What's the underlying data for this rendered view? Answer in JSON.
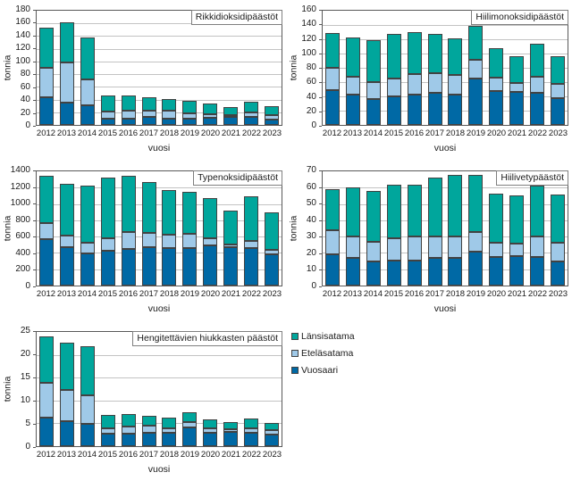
{
  "axis": {
    "ylabel": "tonnia",
    "xlabel": "vuosi"
  },
  "legend": {
    "items": [
      {
        "label": "Länsisatama",
        "color": "#00A69C"
      },
      {
        "label": "Eteläsatama",
        "color": "#9FC9E8"
      },
      {
        "label": "Vuosaari",
        "color": "#0069A5"
      }
    ]
  },
  "colors": {
    "lansisatama": "#00A69C",
    "etelasatama": "#9FC9E8",
    "vuosaari": "#0069A5",
    "bar_outline": "#424242",
    "gridline": "#C3C3C3",
    "plot_border": "#595959"
  },
  "chart_data": [
    {
      "type": "bar",
      "stacked": true,
      "title": "Rikkidioksidipäästöt",
      "ylabel": "tonnia",
      "xlabel": "vuosi",
      "ylim": [
        0,
        180
      ],
      "yticks": [
        0,
        20,
        40,
        60,
        80,
        100,
        120,
        140,
        160,
        180
      ],
      "categories": [
        "2012",
        "2013",
        "2014",
        "2015",
        "2016",
        "2017",
        "2018",
        "2019",
        "2020",
        "2021",
        "2022",
        "2023"
      ],
      "series": [
        {
          "name": "Vuosaari",
          "color": "#0069A5",
          "values": [
            44,
            35,
            31,
            10,
            10,
            12,
            10,
            10,
            11,
            12,
            12,
            9
          ]
        },
        {
          "name": "Eteläsatama",
          "color": "#9FC9E8",
          "values": [
            46,
            64,
            41,
            11,
            12,
            11,
            13,
            8,
            6,
            4,
            8,
            6
          ]
        },
        {
          "name": "Länsisatama",
          "color": "#00A69C",
          "values": [
            64,
            63,
            66,
            25,
            25,
            20,
            18,
            20,
            17,
            12,
            17,
            14
          ]
        }
      ]
    },
    {
      "type": "bar",
      "stacked": true,
      "title": "Hiilimonoksidipäästöt",
      "ylabel": "tonnia",
      "xlabel": "vuosi",
      "ylim": [
        0,
        160
      ],
      "yticks": [
        0,
        20,
        40,
        60,
        80,
        100,
        120,
        140,
        160
      ],
      "categories": [
        "2012",
        "2013",
        "2014",
        "2015",
        "2016",
        "2017",
        "2018",
        "2019",
        "2020",
        "2021",
        "2022",
        "2023"
      ],
      "series": [
        {
          "name": "Vuosaari",
          "color": "#0069A5",
          "values": [
            49,
            43,
            36,
            40,
            42,
            45,
            43,
            65,
            47,
            46,
            45,
            38
          ]
        },
        {
          "name": "Eteläsatama",
          "color": "#9FC9E8",
          "values": [
            31,
            25,
            24,
            25,
            29,
            28,
            27,
            26,
            19,
            13,
            22,
            19
          ]
        },
        {
          "name": "Länsisatama",
          "color": "#00A69C",
          "values": [
            49,
            54,
            59,
            62,
            59,
            54,
            51,
            48,
            42,
            37,
            47,
            39
          ]
        }
      ]
    },
    {
      "type": "bar",
      "stacked": true,
      "title": "Typenoksidipäästöt",
      "ylabel": "tonnia",
      "xlabel": "vuosi",
      "ylim": [
        0,
        1400
      ],
      "yticks": [
        0,
        200,
        400,
        600,
        800,
        1000,
        1200,
        1400
      ],
      "categories": [
        "2012",
        "2013",
        "2014",
        "2015",
        "2016",
        "2017",
        "2018",
        "2019",
        "2020",
        "2021",
        "2022",
        "2023"
      ],
      "series": [
        {
          "name": "Vuosaari",
          "color": "#0069A5",
          "values": [
            565,
            475,
            390,
            430,
            445,
            475,
            455,
            465,
            490,
            475,
            455,
            380
          ]
        },
        {
          "name": "Eteläsatama",
          "color": "#9FC9E8",
          "values": [
            205,
            135,
            130,
            155,
            210,
            175,
            165,
            165,
            95,
            30,
            95,
            60
          ]
        },
        {
          "name": "Länsisatama",
          "color": "#00A69C",
          "values": [
            575,
            635,
            705,
            740,
            695,
            615,
            550,
            520,
            485,
            415,
            545,
            455
          ]
        }
      ]
    },
    {
      "type": "bar",
      "stacked": true,
      "title": "Hiilivetypäästöt",
      "ylabel": "tonnia",
      "xlabel": "vuosi",
      "ylim": [
        0,
        70
      ],
      "yticks": [
        0,
        10,
        20,
        30,
        40,
        50,
        60,
        70
      ],
      "categories": [
        "2012",
        "2013",
        "2014",
        "2015",
        "2016",
        "2017",
        "2018",
        "2019",
        "2020",
        "2021",
        "2022",
        "2023"
      ],
      "series": [
        {
          "name": "Vuosaari",
          "color": "#0069A5",
          "values": [
            19,
            17,
            15,
            15.5,
            15.5,
            17,
            17,
            21,
            17.5,
            18,
            17.5,
            15
          ]
        },
        {
          "name": "Eteläsatama",
          "color": "#9FC9E8",
          "values": [
            15,
            13,
            12,
            13.5,
            14.5,
            13,
            13,
            12,
            8.5,
            7.5,
            12.5,
            11
          ]
        },
        {
          "name": "Länsisatama",
          "color": "#00A69C",
          "values": [
            25,
            30,
            31,
            33,
            32,
            36,
            38,
            35,
            30.5,
            29.5,
            31.5,
            30
          ]
        }
      ]
    },
    {
      "type": "bar",
      "stacked": true,
      "title": "Hengitettävien hiukkasten päästöt",
      "ylabel": "tonnia",
      "xlabel": "vuosi",
      "ylim": [
        0,
        25
      ],
      "yticks": [
        0,
        5,
        10,
        15,
        20,
        25
      ],
      "categories": [
        "2012",
        "2013",
        "2014",
        "2015",
        "2016",
        "2017",
        "2018",
        "2019",
        "2020",
        "2021",
        "2022",
        "2023"
      ],
      "series": [
        {
          "name": "Vuosaari",
          "color": "#0069A5",
          "values": [
            6.2,
            5.4,
            4.9,
            2.7,
            2.7,
            3.0,
            3.0,
            4.2,
            3.0,
            3.2,
            3.0,
            2.5
          ]
        },
        {
          "name": "Eteläsatama",
          "color": "#9FC9E8",
          "values": [
            7.7,
            6.9,
            6.3,
            1.2,
            1.6,
            1.4,
            1.0,
            1.1,
            0.9,
            0.6,
            1.0,
            1.0
          ]
        },
        {
          "name": "Länsisatama",
          "color": "#00A69C",
          "values": [
            10.1,
            10.4,
            10.6,
            3.0,
            2.7,
            2.3,
            2.3,
            2.2,
            1.9,
            1.4,
            2.0,
            1.5
          ]
        }
      ]
    }
  ]
}
